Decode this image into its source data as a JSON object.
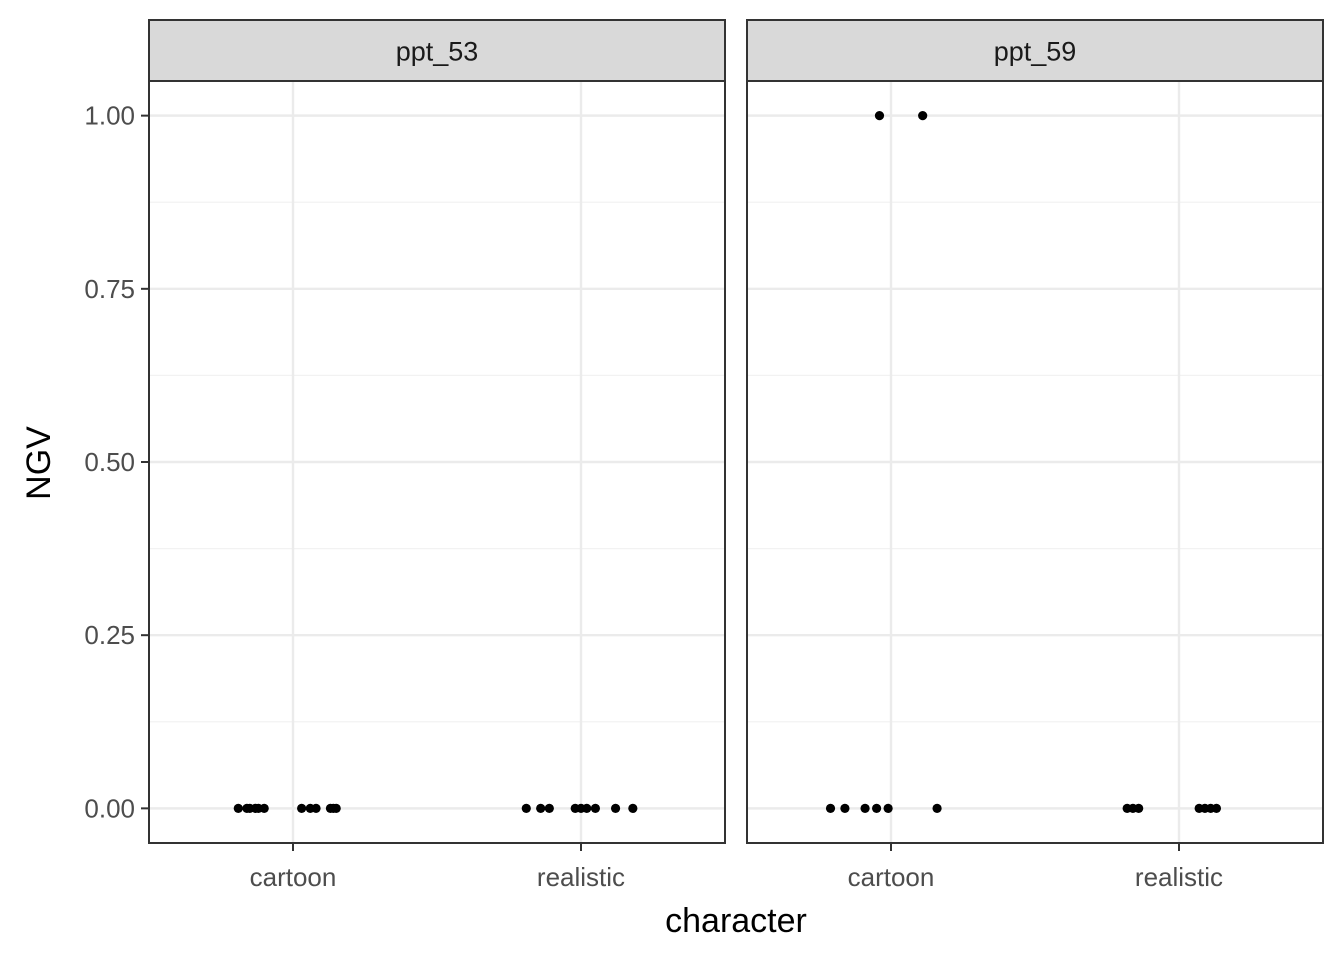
{
  "chart_data": {
    "type": "scatter",
    "xlabel": "character",
    "ylabel": "NGV",
    "categories": [
      "cartoon",
      "realistic"
    ],
    "ylim": [
      -0.05,
      1.05
    ],
    "yticks": [
      "0.00",
      "0.25",
      "0.50",
      "0.75",
      "1.00"
    ],
    "grid": true,
    "facets": [
      {
        "label": "ppt_53",
        "points": [
          {
            "x": "cartoon",
            "jitter": -0.19,
            "y": 0
          },
          {
            "x": "cartoon",
            "jitter": -0.16,
            "y": 0
          },
          {
            "x": "cartoon",
            "jitter": -0.15,
            "y": 0
          },
          {
            "x": "cartoon",
            "jitter": -0.13,
            "y": 0
          },
          {
            "x": "cartoon",
            "jitter": -0.12,
            "y": 0
          },
          {
            "x": "cartoon",
            "jitter": -0.1,
            "y": 0
          },
          {
            "x": "cartoon",
            "jitter": 0.03,
            "y": 0
          },
          {
            "x": "cartoon",
            "jitter": 0.06,
            "y": 0
          },
          {
            "x": "cartoon",
            "jitter": 0.08,
            "y": 0
          },
          {
            "x": "cartoon",
            "jitter": 0.13,
            "y": 0
          },
          {
            "x": "cartoon",
            "jitter": 0.14,
            "y": 0
          },
          {
            "x": "cartoon",
            "jitter": 0.15,
            "y": 0
          },
          {
            "x": "realistic",
            "jitter": -0.19,
            "y": 0
          },
          {
            "x": "realistic",
            "jitter": -0.14,
            "y": 0
          },
          {
            "x": "realistic",
            "jitter": -0.11,
            "y": 0
          },
          {
            "x": "realistic",
            "jitter": -0.02,
            "y": 0
          },
          {
            "x": "realistic",
            "jitter": 0.0,
            "y": 0
          },
          {
            "x": "realistic",
            "jitter": 0.02,
            "y": 0
          },
          {
            "x": "realistic",
            "jitter": 0.05,
            "y": 0
          },
          {
            "x": "realistic",
            "jitter": 0.12,
            "y": 0
          },
          {
            "x": "realistic",
            "jitter": 0.18,
            "y": 0
          }
        ]
      },
      {
        "label": "ppt_59",
        "points": [
          {
            "x": "cartoon",
            "jitter": -0.21,
            "y": 0
          },
          {
            "x": "cartoon",
            "jitter": -0.16,
            "y": 0
          },
          {
            "x": "cartoon",
            "jitter": -0.09,
            "y": 0
          },
          {
            "x": "cartoon",
            "jitter": -0.05,
            "y": 0
          },
          {
            "x": "cartoon",
            "jitter": -0.01,
            "y": 0
          },
          {
            "x": "cartoon",
            "jitter": 0.16,
            "y": 0
          },
          {
            "x": "cartoon",
            "jitter": -0.04,
            "y": 1
          },
          {
            "x": "cartoon",
            "jitter": 0.11,
            "y": 1
          },
          {
            "x": "realistic",
            "jitter": -0.18,
            "y": 0
          },
          {
            "x": "realistic",
            "jitter": -0.16,
            "y": 0
          },
          {
            "x": "realistic",
            "jitter": -0.14,
            "y": 0
          },
          {
            "x": "realistic",
            "jitter": 0.07,
            "y": 0
          },
          {
            "x": "realistic",
            "jitter": 0.09,
            "y": 0
          },
          {
            "x": "realistic",
            "jitter": 0.11,
            "y": 0
          },
          {
            "x": "realistic",
            "jitter": 0.13,
            "y": 0
          }
        ]
      }
    ]
  }
}
